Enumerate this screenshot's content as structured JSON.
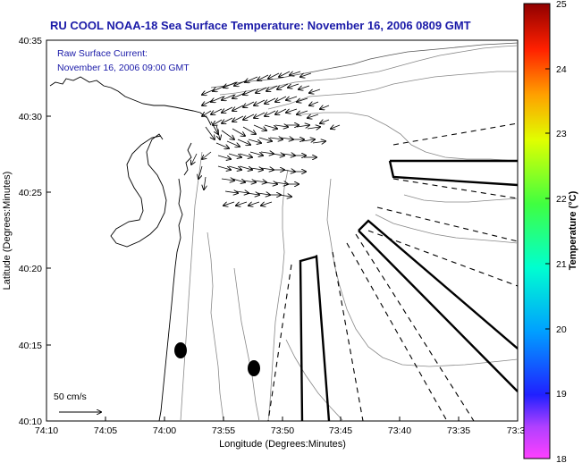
{
  "title": "RU COOL  NOAA-18  Sea Surface Temperature:  November 16, 2006 0809 GMT",
  "annotation": {
    "line1": "Raw Surface Current:",
    "line2": "November 16, 2006 09:00 GMT"
  },
  "scale_label": "50 cm/s",
  "xlabel": "Longitude (Degrees:Minutes)",
  "ylabel": "Latitude (Degrees:Minutes)",
  "colorbar_label": "Temperature (°C)",
  "colors": {
    "title_text": "#1a1aa8",
    "annotation_text": "#1a1aa8"
  },
  "chart_data": {
    "type": "map",
    "x_ticks": [
      "74:10",
      "74:05",
      "74:00",
      "73:55",
      "73:50",
      "73:45",
      "73:40",
      "73:35",
      "73:3"
    ],
    "y_ticks": [
      "40:35",
      "40:30",
      "40:25",
      "40:20",
      "40:15",
      "40:10"
    ],
    "colorbar_ticks": [
      "25",
      "24",
      "23",
      "22",
      "21",
      "20",
      "19",
      "18"
    ],
    "colorbar_range": [
      18,
      25
    ]
  }
}
